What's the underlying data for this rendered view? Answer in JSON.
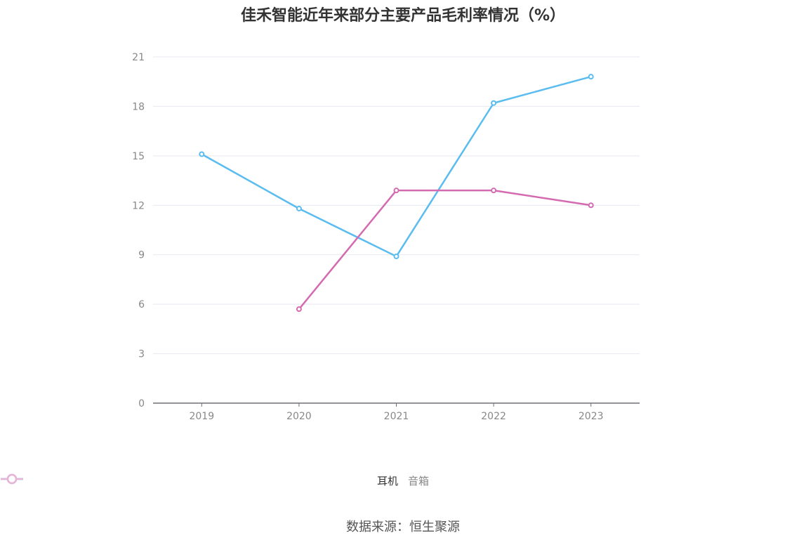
{
  "chart_data": {
    "type": "line",
    "title": "佳禾智能近年来部分主要产品毛利率情况（%）",
    "categories": [
      "2019",
      "2020",
      "2021",
      "2022",
      "2023"
    ],
    "series": [
      {
        "name": "耳机",
        "values": [
          15.1,
          11.8,
          8.9,
          18.2,
          19.8
        ],
        "color": "#5bbcf0"
      },
      {
        "name": "音箱",
        "values": [
          null,
          5.7,
          12.9,
          12.9,
          12.0
        ],
        "color": "#d46bb0"
      }
    ],
    "ylim": [
      0,
      21
    ],
    "yticks": [
      0,
      3,
      6,
      9,
      12,
      15,
      18,
      21
    ],
    "grid": true,
    "legend_position": "bottom"
  },
  "source": "数据来源：恒生聚源"
}
